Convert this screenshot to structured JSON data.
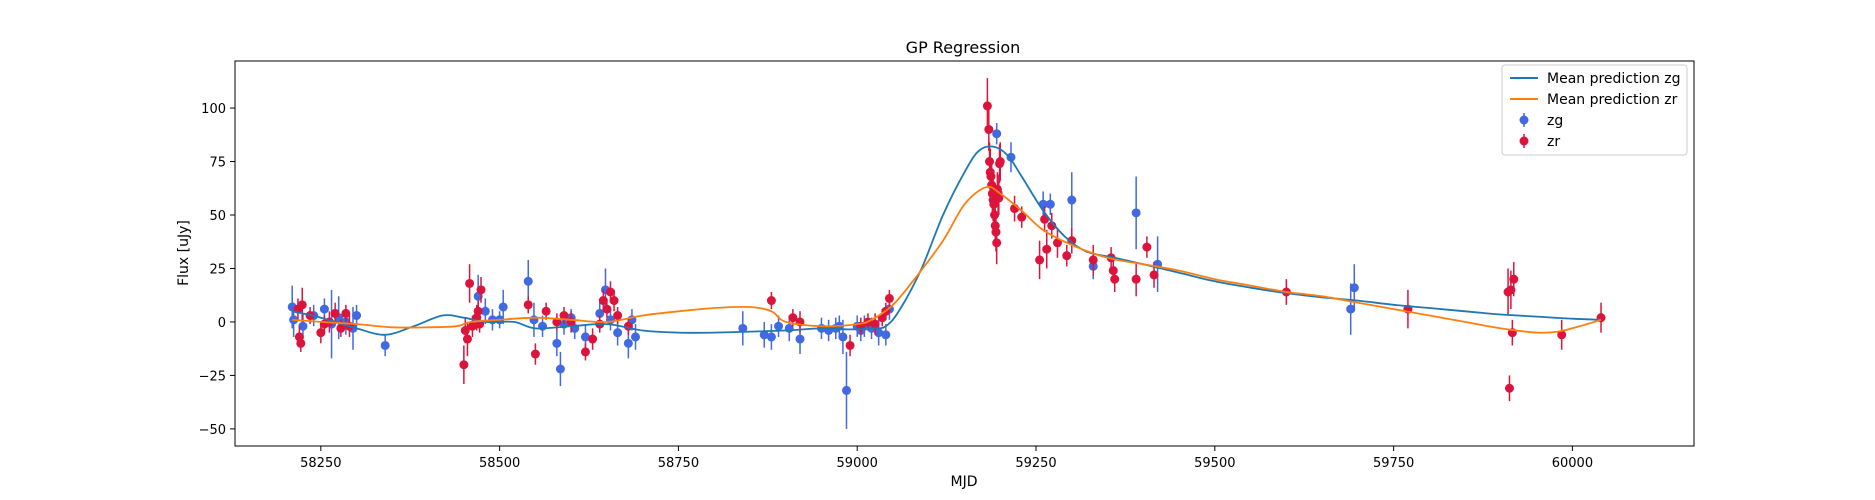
{
  "chart_data": {
    "type": "scatter",
    "title": "GP Regression",
    "xlabel": "MJD",
    "ylabel": "Flux [uJy]",
    "xlim": [
      58130,
      60170
    ],
    "ylim": [
      -58,
      122
    ],
    "xticks": [
      58250,
      58500,
      58750,
      59000,
      59250,
      59500,
      59750,
      60000
    ],
    "yticks": [
      -50,
      -25,
      0,
      25,
      50,
      75,
      100
    ],
    "grid": false,
    "legend_position": "top-right",
    "colors": {
      "zg": "#4169E1",
      "zr": "#DC143C",
      "mean_zg": "#1f77b4",
      "mean_zr": "#ff7f0e"
    },
    "series": [
      {
        "name": "Mean prediction zg",
        "kind": "line",
        "x": [
          58210,
          58250,
          58300,
          58340,
          58380,
          58420,
          58450,
          58480,
          58520,
          58550,
          58600,
          58650,
          58700,
          58750,
          58800,
          58850,
          58900,
          58950,
          58990,
          59020,
          59040,
          59060,
          59090,
          59120,
          59150,
          59170,
          59190,
          59210,
          59230,
          59260,
          59290,
          59320,
          59360,
          59400,
          59450,
          59500,
          59550,
          59600,
          59650,
          59700,
          59750,
          59800,
          59850,
          59900,
          59950,
          60000,
          60040
        ],
        "y": [
          5,
          2,
          -3,
          -6,
          -2,
          3,
          2,
          0,
          0,
          -3,
          -2,
          -1,
          -4,
          -5,
          -5,
          -4.5,
          -4,
          -3,
          -3.5,
          -3,
          -2,
          6,
          25,
          50,
          70,
          80,
          82,
          78,
          68,
          52,
          40,
          33,
          30,
          27,
          23,
          19,
          16,
          13.5,
          11.5,
          10,
          8,
          6.5,
          5,
          3.5,
          2.5,
          1.5,
          1
        ]
      },
      {
        "name": "Mean prediction zr",
        "kind": "line",
        "x": [
          58210,
          58250,
          58300,
          58350,
          58400,
          58440,
          58460,
          58500,
          58550,
          58600,
          58650,
          58700,
          58750,
          58800,
          58850,
          58880,
          58900,
          58950,
          59000,
          59020,
          59050,
          59080,
          59120,
          59150,
          59180,
          59200,
          59230,
          59260,
          59300,
          59350,
          59400,
          59450,
          59500,
          59550,
          59600,
          59650,
          59700,
          59750,
          59800,
          59850,
          59900,
          59950,
          59980,
          60010,
          60040
        ],
        "y": [
          1,
          0,
          -1,
          -2.5,
          -2.5,
          -2,
          0,
          1,
          2,
          1,
          0,
          3,
          5,
          6.5,
          7,
          5,
          0,
          -2,
          -1,
          1,
          8,
          20,
          38,
          55,
          63,
          60,
          52,
          43,
          36,
          30,
          27,
          24,
          20,
          17,
          14,
          12,
          9,
          6,
          3,
          0,
          -3,
          -5,
          -4.5,
          -2,
          1
        ]
      },
      {
        "name": "zg",
        "kind": "errorbar",
        "x": [
          58210,
          58212,
          58225,
          58240,
          58255,
          58265,
          58275,
          58285,
          58295,
          58300,
          58340,
          58470,
          58480,
          58490,
          58500,
          58505,
          58540,
          58548,
          58560,
          58580,
          58585,
          58590,
          58600,
          58605,
          58620,
          58640,
          58648,
          58655,
          58665,
          58680,
          58685,
          58690,
          58840,
          58870,
          58880,
          58890,
          58905,
          58920,
          58950,
          58960,
          58970,
          58975,
          58980,
          58985,
          59000,
          59005,
          59010,
          59020,
          59030,
          59040,
          59045,
          59195,
          59215,
          59260,
          59270,
          59300,
          59330,
          59390,
          59420,
          59690,
          59695
        ],
        "y": [
          7,
          1,
          -2,
          3,
          6,
          -1,
          2,
          0,
          -3,
          3,
          -11,
          12,
          5,
          1,
          1,
          7,
          19,
          1,
          -2,
          -10,
          -22,
          -1,
          2,
          -3,
          -7,
          4,
          15,
          1,
          -5,
          -10,
          1,
          -7,
          -3,
          -6,
          -7,
          -2,
          -3,
          -8,
          -3,
          -4,
          -3,
          -2,
          -7,
          -32,
          -2,
          -4,
          -2,
          -3,
          -5,
          -6,
          6,
          88,
          77,
          55,
          55,
          57,
          26,
          51,
          27,
          6,
          16
        ],
        "err": [
          10,
          8,
          6,
          5,
          5,
          16,
          10,
          6,
          10,
          5,
          5,
          10,
          6,
          5,
          4,
          8,
          10,
          8,
          5,
          6,
          8,
          5,
          4,
          5,
          6,
          6,
          10,
          5,
          6,
          7,
          5,
          6,
          8,
          6,
          6,
          5,
          6,
          7,
          5,
          5,
          5,
          5,
          8,
          18,
          5,
          5,
          5,
          5,
          6,
          5,
          5,
          5,
          7,
          6,
          5,
          13,
          6,
          17,
          13,
          12,
          11
        ]
      },
      {
        "name": "zr",
        "kind": "errorbar",
        "x": [
          58218,
          58220,
          58222,
          58224,
          58235,
          58250,
          58255,
          58262,
          58270,
          58278,
          58285,
          58290,
          58450,
          58452,
          58455,
          58458,
          58462,
          58468,
          58470,
          58472,
          58474,
          58540,
          58550,
          58565,
          58580,
          58590,
          58600,
          58620,
          58630,
          58640,
          58645,
          58650,
          58655,
          58660,
          58665,
          58680,
          58880,
          58910,
          58920,
          58990,
          59005,
          59015,
          59025,
          59035,
          59040,
          59045,
          59182,
          59184,
          59185,
          59186,
          59187,
          59188,
          59189,
          59190,
          59191,
          59192,
          59193,
          59194,
          59195,
          59196,
          59197,
          59198,
          59199,
          59200,
          59220,
          59230,
          59255,
          59262,
          59265,
          59272,
          59280,
          59293,
          59300,
          59330,
          59355,
          59358,
          59360,
          59390,
          59405,
          59415,
          59600,
          59770,
          59910,
          59912,
          59914,
          59916,
          59918,
          59985,
          60040
        ],
        "y": [
          6,
          -7,
          -10,
          8,
          3,
          -5,
          -1,
          0,
          4,
          -3,
          4,
          -2,
          -20,
          -4,
          -8,
          18,
          -2,
          2,
          5,
          -1,
          15,
          8,
          -15,
          5,
          0,
          3,
          0,
          -14,
          -8,
          -1,
          10,
          6,
          14,
          10,
          3,
          -2,
          10,
          2,
          0,
          -11,
          -2,
          0,
          -1,
          2,
          5,
          11,
          101,
          90,
          75,
          70,
          68,
          64,
          60,
          57,
          55,
          50,
          45,
          42,
          37,
          62,
          60,
          58,
          74,
          75,
          53,
          49,
          29,
          48,
          34,
          45,
          37,
          31,
          38,
          29,
          30,
          24,
          20,
          20,
          35,
          22,
          14,
          6,
          14,
          -31,
          15,
          -5,
          20,
          -6,
          2
        ],
        "err": [
          5,
          5,
          4,
          8,
          4,
          5,
          4,
          5,
          5,
          4,
          4,
          5,
          9,
          6,
          8,
          9,
          5,
          6,
          5,
          4,
          6,
          4,
          5,
          4,
          4,
          4,
          5,
          4,
          5,
          4,
          5,
          4,
          5,
          5,
          4,
          4,
          4,
          4,
          5,
          5,
          4,
          4,
          5,
          4,
          4,
          4,
          13,
          10,
          9,
          11,
          8,
          10,
          9,
          10,
          8,
          9,
          8,
          9,
          10,
          8,
          9,
          8,
          9,
          9,
          6,
          5,
          9,
          6,
          9,
          6,
          7,
          5,
          6,
          7,
          5,
          6,
          6,
          8,
          5,
          6,
          6,
          9,
          11,
          6,
          9,
          6,
          8,
          7,
          7
        ]
      }
    ]
  }
}
